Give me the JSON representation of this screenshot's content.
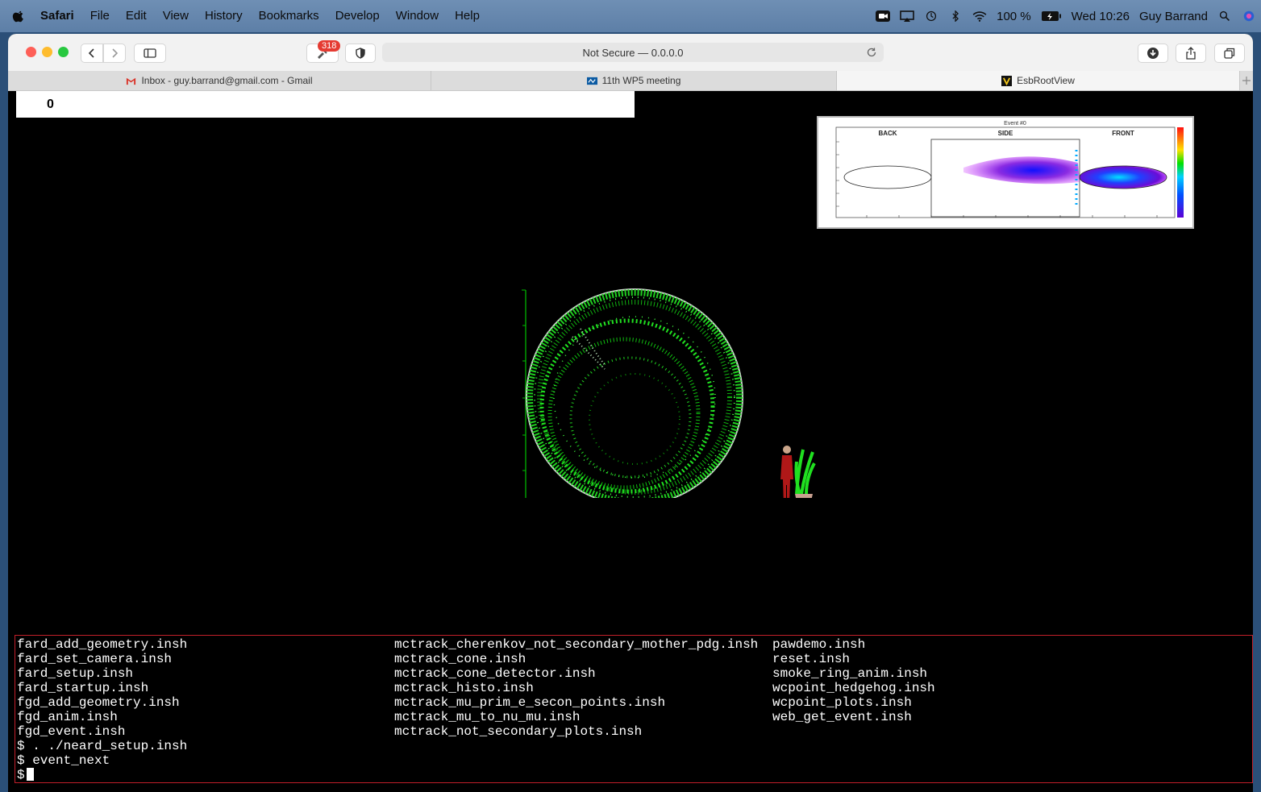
{
  "menubar": {
    "app": "Safari",
    "items": [
      "File",
      "Edit",
      "View",
      "History",
      "Bookmarks",
      "Develop",
      "Window",
      "Help"
    ],
    "battery": "100 %",
    "datetime": "Wed 10:26",
    "user": "Guy Barrand"
  },
  "toolbar": {
    "badge": "318",
    "address": "Not Secure — 0.0.0.0"
  },
  "tabs": [
    {
      "label": "Inbox - guy.barrand@gmail.com - Gmail"
    },
    {
      "label": "11th WP5 meeting"
    },
    {
      "label": "EsbRootView"
    }
  ],
  "viewer": {
    "counter": "0",
    "inset": {
      "title": "Event #0",
      "panels": [
        "BACK",
        "SIDE",
        "FRONT"
      ]
    }
  },
  "terminal": {
    "col1": [
      "fard_add_geometry.insh",
      "fard_set_camera.insh",
      "fard_setup.insh",
      "fard_startup.insh",
      "fgd_add_geometry.insh",
      "fgd_anim.insh",
      "fgd_event.insh"
    ],
    "col2": [
      "mctrack_cherenkov_not_secondary_mother_pdg.insh",
      "mctrack_cone.insh",
      "mctrack_cone_detector.insh",
      "mctrack_histo.insh",
      "mctrack_mu_prim_e_secon_points.insh",
      "mctrack_mu_to_nu_mu.insh",
      "mctrack_not_secondary_plots.insh"
    ],
    "col3": [
      "pawdemo.insh",
      "reset.insh",
      "smoke_ring_anim.insh",
      "wcpoint_hedgehog.insh",
      "wcpoint_plots.insh",
      "web_get_event.insh"
    ],
    "history": [
      "$ . ./neard_setup.insh",
      "$ event_next"
    ],
    "prompt": "$"
  }
}
